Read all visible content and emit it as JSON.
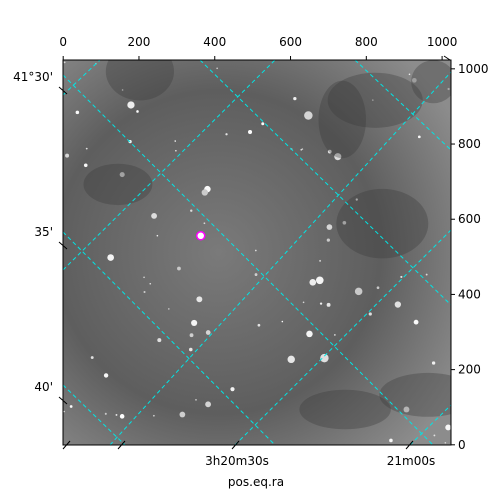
{
  "chart_data": {
    "type": "image",
    "xlabel": "pos.eq.ra",
    "xlim": [
      -0.5,
      1023.5
    ],
    "ylim": [
      -0.5,
      1023.5
    ],
    "xticks": [
      0,
      200,
      400,
      600,
      800,
      1000
    ],
    "yticks": [
      0,
      200,
      400,
      600,
      800,
      1000
    ],
    "dec_tick_labels": [
      "41°30'",
      "35'",
      "40'"
    ],
    "ra_tick_labels": [
      "3h20m30s",
      "21m00s"
    ],
    "marker": {
      "x": 363,
      "y": 556,
      "color": "#ff00ff"
    },
    "grid_color": "#00e5e5"
  }
}
